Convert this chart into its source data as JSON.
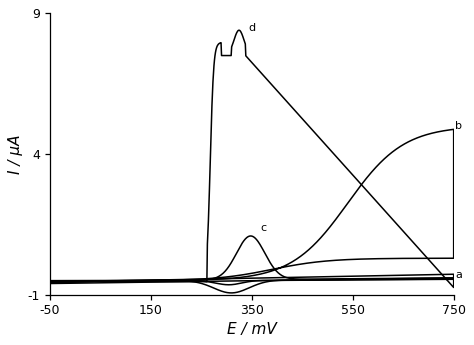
{
  "xlim": [
    -50,
    750
  ],
  "ylim": [
    -1,
    9
  ],
  "xticks": [
    -50,
    150,
    350,
    550,
    750
  ],
  "ytick_vals": [
    -1,
    4,
    9
  ],
  "xlabel": "E / mV",
  "ylabel": "I / μA",
  "line_color": "#000000",
  "background_color": "#ffffff",
  "label_a": "a",
  "label_b": "b",
  "label_c": "c",
  "label_d": "d"
}
